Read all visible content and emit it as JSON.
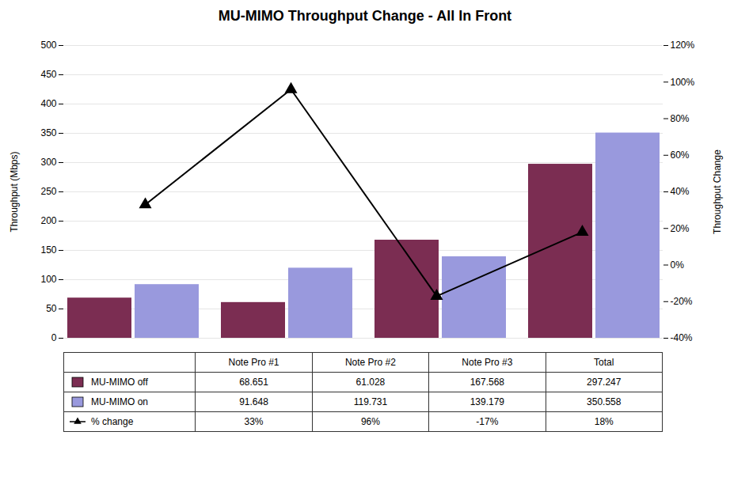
{
  "chart_data": {
    "type": "bar",
    "title": "MU-MIMO Throughput Change - All In Front",
    "categories": [
      "Note Pro #1",
      "Note Pro #2",
      "Note Pro #3",
      "Total"
    ],
    "series": [
      {
        "name": "MU-MIMO off",
        "color": "#7B2D52",
        "values": [
          68.651,
          61.028,
          167.568,
          297.247
        ]
      },
      {
        "name": "MU-MIMO on",
        "color": "#9999DD",
        "values": [
          91.648,
          119.731,
          139.179,
          350.558
        ]
      },
      {
        "name": "% change",
        "type": "line",
        "axis": "y2",
        "color": "#000000",
        "marker": "triangle",
        "values": [
          0.33,
          0.96,
          -0.17,
          0.18
        ],
        "value_labels": [
          "33%",
          "96%",
          "-17%",
          "18%"
        ]
      }
    ],
    "ylabel": "Throughput (Mbps)",
    "y2label": "Throughput Change",
    "ylim": [
      0,
      500
    ],
    "yticks": [
      0,
      50,
      100,
      150,
      200,
      250,
      300,
      350,
      400,
      450,
      500
    ],
    "y2lim": [
      -0.4,
      1.2
    ],
    "y2ticks": [
      {
        "value": -0.4,
        "label": "-40%"
      },
      {
        "value": -0.2,
        "label": "-20%"
      },
      {
        "value": 0.0,
        "label": "0%"
      },
      {
        "value": 0.2,
        "label": "20%"
      },
      {
        "value": 0.4,
        "label": "40%"
      },
      {
        "value": 0.6,
        "label": "60%"
      },
      {
        "value": 0.8,
        "label": "80%"
      },
      {
        "value": 1.0,
        "label": "100%"
      },
      {
        "value": 1.2,
        "label": "120%"
      }
    ],
    "grid": true,
    "legend": "bottom",
    "data_labels": true
  }
}
